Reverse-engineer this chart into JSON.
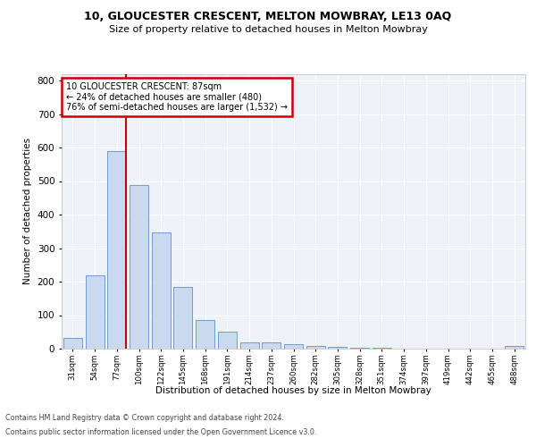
{
  "title1": "10, GLOUCESTER CRESCENT, MELTON MOWBRAY, LE13 0AQ",
  "title2": "Size of property relative to detached houses in Melton Mowbray",
  "xlabel": "Distribution of detached houses by size in Melton Mowbray",
  "ylabel": "Number of detached properties",
  "annotation_line1": "10 GLOUCESTER CRESCENT: 87sqm",
  "annotation_line2": "← 24% of detached houses are smaller (480)",
  "annotation_line3": "76% of semi-detached houses are larger (1,532) →",
  "footnote1": "Contains HM Land Registry data © Crown copyright and database right 2024.",
  "footnote2": "Contains public sector information licensed under the Open Government Licence v3.0.",
  "bar_categories": [
    "31sqm",
    "54sqm",
    "77sqm",
    "100sqm",
    "122sqm",
    "145sqm",
    "168sqm",
    "191sqm",
    "214sqm",
    "237sqm",
    "260sqm",
    "282sqm",
    "305sqm",
    "328sqm",
    "351sqm",
    "374sqm",
    "397sqm",
    "419sqm",
    "442sqm",
    "465sqm",
    "488sqm"
  ],
  "bar_values": [
    32,
    220,
    590,
    488,
    348,
    185,
    85,
    52,
    20,
    18,
    14,
    8,
    5,
    3,
    2,
    1,
    0,
    0,
    0,
    0,
    8
  ],
  "bar_color": "#c9d9f0",
  "bar_edge_color": "#5b8fc9",
  "vline_color": "#cc0000",
  "annotation_box_color": "#cc0000",
  "background_color": "#eef2f8",
  "grid_color": "#ffffff",
  "ylim": [
    0,
    820
  ],
  "yticks": [
    0,
    100,
    200,
    300,
    400,
    500,
    600,
    700,
    800
  ]
}
